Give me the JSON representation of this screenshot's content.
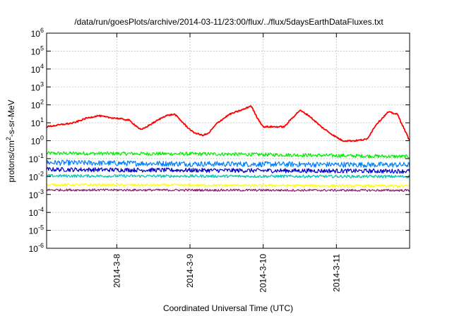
{
  "chart_data": {
    "type": "line",
    "title": "/data/run/goesPlots/archive/2014-03-11/23:00/flux/../flux/5daysEarthDataFluxes.txt",
    "xlabel": "Coordinated Universal Time (UTC)",
    "ylabel": "protons/cm²-s-sr-MeV",
    "yscale": "log",
    "ylim_exponent": [
      -6,
      6
    ],
    "ytick_labels": [
      {
        "base": "10",
        "exp": "-6"
      },
      {
        "base": "10",
        "exp": "-5"
      },
      {
        "base": "10",
        "exp": "-4"
      },
      {
        "base": "10",
        "exp": "-3"
      },
      {
        "base": "10",
        "exp": "-2"
      },
      {
        "base": "10",
        "exp": "-1"
      },
      {
        "base": "10",
        "exp": "0"
      },
      {
        "base": "10",
        "exp": "1"
      },
      {
        "base": "10",
        "exp": "2"
      },
      {
        "base": "10",
        "exp": "3"
      },
      {
        "base": "10",
        "exp": "4"
      },
      {
        "base": "10",
        "exp": "5"
      },
      {
        "base": "10",
        "exp": "6"
      }
    ],
    "xlim": [
      "2014-03-07 01:00",
      "2014-03-12 00:00"
    ],
    "xticks": [
      {
        "label": "2014-3-8",
        "date": "2014-03-08"
      },
      {
        "label": "2014-3-9",
        "date": "2014-03-09"
      },
      {
        "label": "2014-3-10",
        "date": "2014-03-10"
      },
      {
        "label": "2014-3-11",
        "date": "2014-03-11"
      }
    ],
    "grid": true,
    "legend": "none",
    "series": [
      {
        "color": "#ff0000",
        "noise_log10": 0.04,
        "points": [
          [
            "2014-03-07 01:00",
            6
          ],
          [
            "2014-03-07 06:00",
            8
          ],
          [
            "2014-03-07 10:00",
            10
          ],
          [
            "2014-03-07 14:00",
            18
          ],
          [
            "2014-03-07 18:00",
            25
          ],
          [
            "2014-03-07 21:00",
            20
          ],
          [
            "2014-03-08 00:00",
            18
          ],
          [
            "2014-03-08 04:00",
            14
          ],
          [
            "2014-03-08 08:00",
            4
          ],
          [
            "2014-03-08 11:00",
            8
          ],
          [
            "2014-03-08 16:00",
            25
          ],
          [
            "2014-03-08 19:00",
            30
          ],
          [
            "2014-03-08 23:00",
            6
          ],
          [
            "2014-03-09 01:00",
            3
          ],
          [
            "2014-03-09 04:00",
            2
          ],
          [
            "2014-03-09 06:00",
            2.5
          ],
          [
            "2014-03-09 09:00",
            10
          ],
          [
            "2014-03-09 13:00",
            30
          ],
          [
            "2014-03-09 18:00",
            60
          ],
          [
            "2014-03-09 20:00",
            90
          ],
          [
            "2014-03-09 22:00",
            20
          ],
          [
            "2014-03-10 00:00",
            6
          ],
          [
            "2014-03-10 04:00",
            6
          ],
          [
            "2014-03-10 07:00",
            6
          ],
          [
            "2014-03-10 09:00",
            15
          ],
          [
            "2014-03-10 12:00",
            50
          ],
          [
            "2014-03-10 15:00",
            25
          ],
          [
            "2014-03-10 19:00",
            6
          ],
          [
            "2014-03-10 23:00",
            2
          ],
          [
            "2014-03-11 02:00",
            1
          ],
          [
            "2014-03-11 06:00",
            1
          ],
          [
            "2014-03-11 10:00",
            1.2
          ],
          [
            "2014-03-11 13:00",
            8
          ],
          [
            "2014-03-11 17:00",
            40
          ],
          [
            "2014-03-11 20:00",
            30
          ],
          [
            "2014-03-12 00:00",
            1
          ]
        ]
      },
      {
        "color": "#00ee00",
        "noise_log10": 0.1,
        "points": [
          [
            "2014-03-07 01:00",
            0.2
          ],
          [
            "2014-03-09 12:00",
            0.18
          ],
          [
            "2014-03-12 00:00",
            0.13
          ]
        ]
      },
      {
        "color": "#0080ff",
        "noise_log10": 0.15,
        "points": [
          [
            "2014-03-07 01:00",
            0.06
          ],
          [
            "2014-03-09 12:00",
            0.05
          ],
          [
            "2014-03-12 00:00",
            0.045
          ]
        ]
      },
      {
        "color": "#0000cc",
        "noise_log10": 0.12,
        "points": [
          [
            "2014-03-07 01:00",
            0.025
          ],
          [
            "2014-03-09 12:00",
            0.022
          ],
          [
            "2014-03-12 00:00",
            0.02
          ]
        ]
      },
      {
        "color": "#00c8b4",
        "noise_log10": 0.08,
        "points": [
          [
            "2014-03-07 01:00",
            0.011
          ],
          [
            "2014-03-12 00:00",
            0.01
          ]
        ]
      },
      {
        "color": "#ffff00",
        "noise_log10": 0.07,
        "points": [
          [
            "2014-03-07 01:00",
            0.0035
          ],
          [
            "2014-03-12 00:00",
            0.003
          ]
        ]
      },
      {
        "color": "#8b1a6b",
        "noise_log10": 0.06,
        "points": [
          [
            "2014-03-07 01:00",
            0.0018
          ],
          [
            "2014-03-12 00:00",
            0.0017
          ]
        ]
      }
    ]
  }
}
